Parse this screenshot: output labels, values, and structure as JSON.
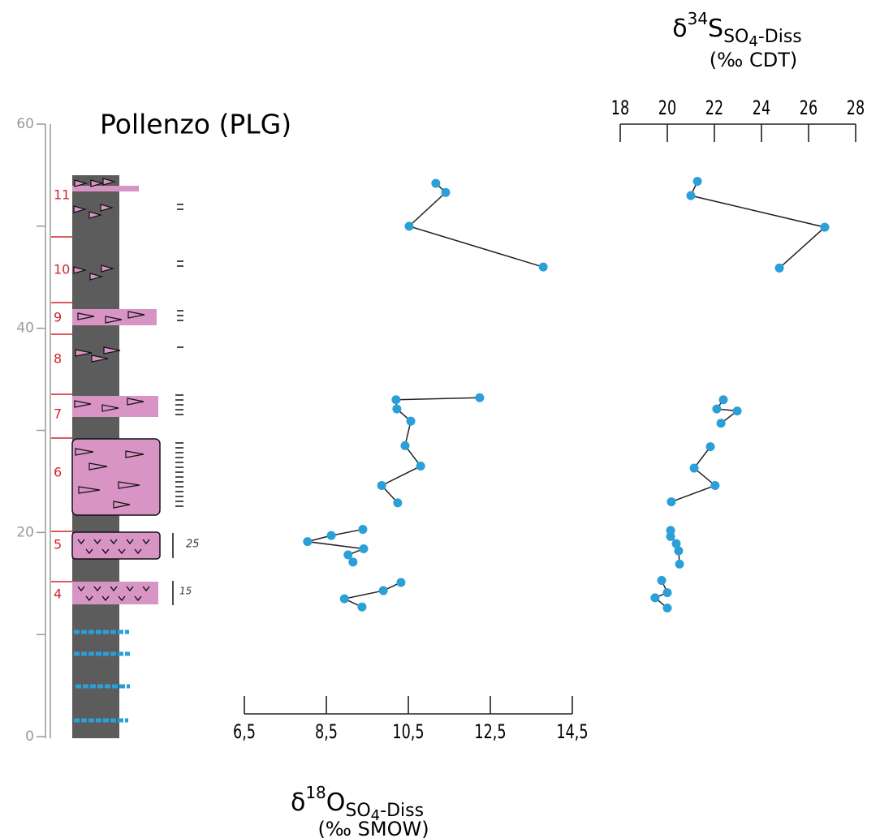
{
  "title": "Pollenzo (PLG)",
  "units": [
    "4",
    "5",
    "6",
    "7",
    "8",
    "9",
    "10",
    "11"
  ],
  "annotations": [
    "25",
    "15"
  ],
  "chart_data": [
    {
      "type": "line",
      "x_label": {
        "prefix": "δ",
        "sup": "18",
        "base": "O",
        "sub": "SO",
        "subsub": "4",
        "sub2": "-Diss",
        "unit": "(‰ SMOW)"
      },
      "xlim": [
        6.5,
        14.5
      ],
      "xticks": [
        {
          "value": 6.5,
          "label": "6,5"
        },
        {
          "value": 8.5,
          "label": "8,5"
        },
        {
          "value": 10.5,
          "label": "10,5"
        },
        {
          "value": 12.5,
          "label": "12,5"
        },
        {
          "value": 14.5,
          "label": "14,5"
        }
      ],
      "ylim": [
        0,
        60
      ],
      "yticks": [
        0,
        20,
        40,
        60
      ],
      "minor_yticks": [
        10,
        30,
        50
      ],
      "series": [
        {
          "color": "#2a9fd8",
          "x": [
            11.17,
            11.41,
            10.52,
            13.79,
            null,
            12.24,
            10.2,
            10.22,
            10.56,
            10.42,
            10.8,
            9.85,
            10.24,
            null,
            9.39,
            8.62,
            8.04,
            9.41,
            9.03,
            9.15,
            null,
            10.32,
            9.89,
            8.94,
            9.37
          ],
          "y": [
            54.2,
            53.3,
            50.0,
            46.0,
            null,
            33.2,
            33.0,
            32.1,
            30.9,
            28.5,
            26.5,
            24.6,
            22.9,
            null,
            20.3,
            19.7,
            19.1,
            18.4,
            17.8,
            17.1,
            null,
            15.1,
            14.3,
            13.5,
            12.7
          ]
        }
      ]
    },
    {
      "type": "line",
      "x_label": {
        "prefix": "δ",
        "sup": "34",
        "base": "S",
        "sub": "SO",
        "subsub": "4",
        "sub2": "-Diss",
        "unit": "(‰ CDT)"
      },
      "xlim": [
        18,
        28
      ],
      "xticks": [
        18,
        20,
        22,
        24,
        26,
        28
      ],
      "ylim": [
        0,
        60
      ],
      "series": [
        {
          "color": "#2a9fd8",
          "x": [
            21.28,
            21.0,
            26.69,
            24.76,
            null,
            22.38,
            22.1,
            22.97,
            22.28,
            null,
            21.83,
            21.14,
            22.03,
            20.17,
            null,
            20.14,
            20.14,
            20.38,
            20.48,
            20.52,
            null,
            19.76,
            20.0,
            19.48,
            20.0
          ],
          "y": [
            54.4,
            53.0,
            49.9,
            45.9,
            null,
            33.0,
            32.1,
            31.9,
            30.7,
            null,
            28.4,
            26.3,
            24.6,
            23.0,
            null,
            20.2,
            19.6,
            18.9,
            18.2,
            16.9,
            null,
            15.3,
            14.1,
            13.6,
            12.6
          ]
        }
      ]
    }
  ]
}
